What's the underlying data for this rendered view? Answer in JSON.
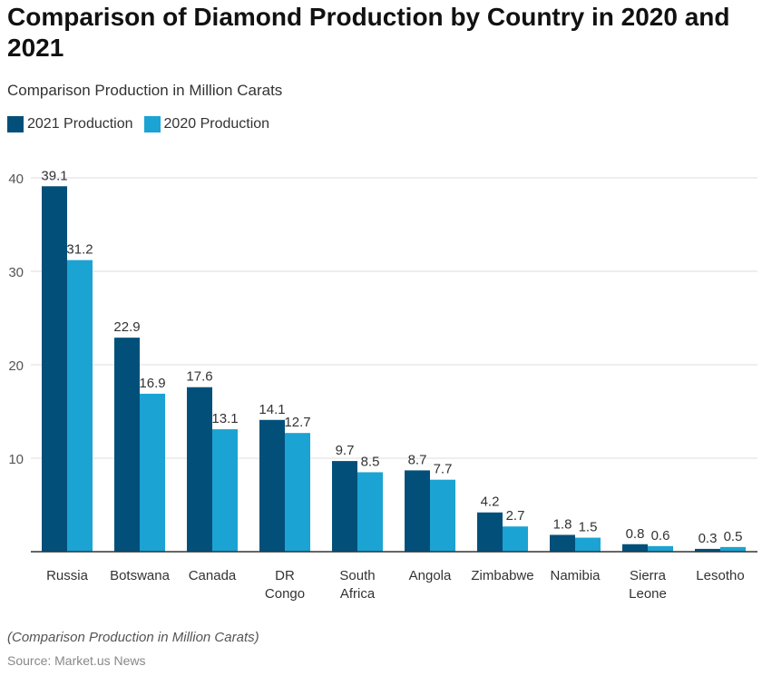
{
  "title": "Comparison of Diamond Production by Country in 2020 and 2021",
  "subtitle": "Comparison Production in Million Carats",
  "footnote": "(Comparison Production in Million Carats)",
  "source": "Source: Market.us News",
  "colors": {
    "2021": "#02507a",
    "2020": "#1ba3d3"
  },
  "chart_data": {
    "type": "bar",
    "categories": [
      [
        "Russia"
      ],
      [
        "Botswana"
      ],
      [
        "Canada"
      ],
      [
        "DR",
        "Congo"
      ],
      [
        "South",
        "Africa"
      ],
      [
        "Angola"
      ],
      [
        "Zimbabwe"
      ],
      [
        "Namibia"
      ],
      [
        "Sierra",
        "Leone"
      ],
      [
        "Lesotho"
      ]
    ],
    "series": [
      {
        "name": "2021 Production",
        "values": [
          39.1,
          22.9,
          17.6,
          14.1,
          9.7,
          8.7,
          4.2,
          1.8,
          0.8,
          0.3
        ]
      },
      {
        "name": "2020 Production",
        "values": [
          31.2,
          16.9,
          13.1,
          12.7,
          8.5,
          7.7,
          2.7,
          1.5,
          0.6,
          0.5
        ]
      }
    ],
    "yticks": [
      10,
      20,
      30,
      40
    ],
    "ylim": [
      0,
      40
    ],
    "grid": true,
    "legend": "top-left"
  }
}
